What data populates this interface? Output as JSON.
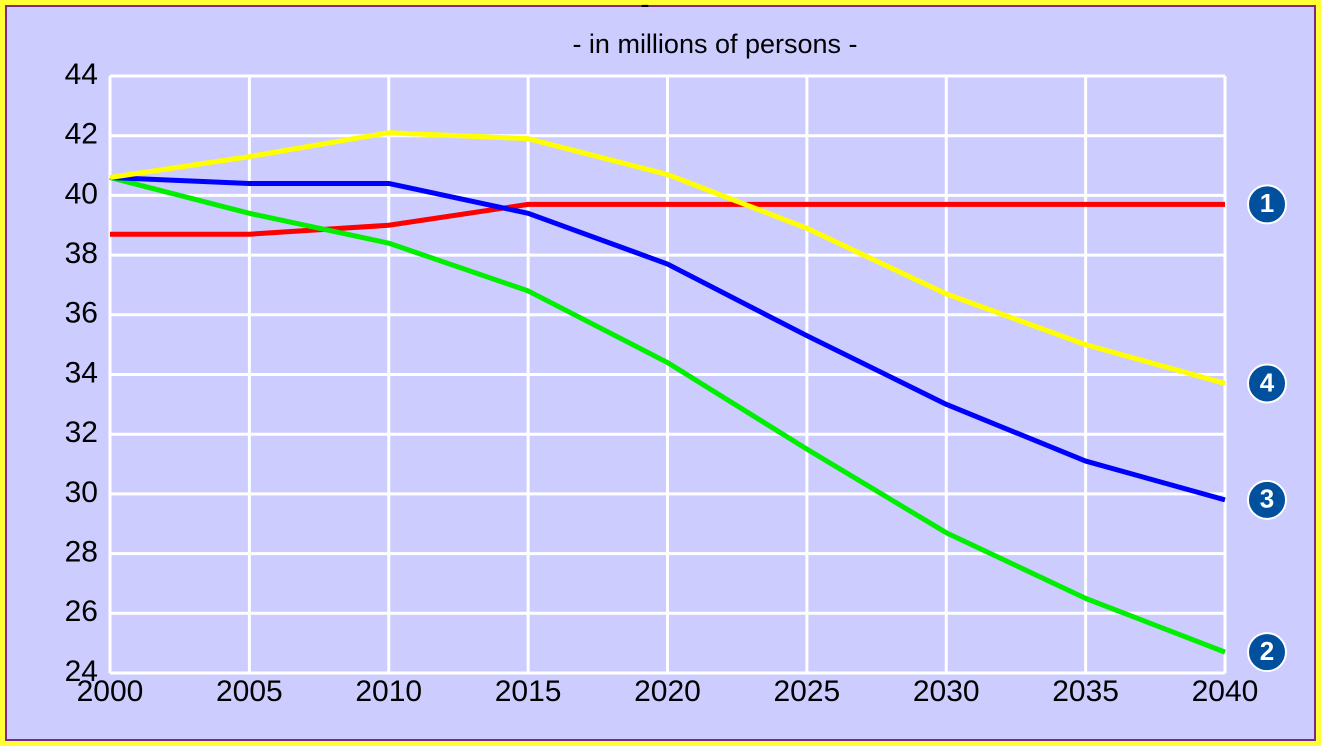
{
  "chart_data": {
    "type": "line",
    "title": "-",
    "subtitle": "- in millions of persons -",
    "x": [
      2000,
      2005,
      2010,
      2015,
      2020,
      2025,
      2030,
      2035,
      2040
    ],
    "series": [
      {
        "name": "1",
        "color": "#ff0000",
        "values": [
          38.7,
          38.7,
          39.0,
          39.7,
          39.7,
          39.7,
          39.7,
          39.7,
          39.7
        ]
      },
      {
        "name": "2",
        "color": "#00ee00",
        "values": [
          40.6,
          39.4,
          38.4,
          36.8,
          34.4,
          31.5,
          28.7,
          26.5,
          24.7
        ]
      },
      {
        "name": "3",
        "color": "#0000ff",
        "values": [
          40.6,
          40.4,
          40.4,
          39.4,
          37.7,
          35.3,
          33.0,
          31.1,
          29.8
        ]
      },
      {
        "name": "4",
        "color": "#ffff00",
        "values": [
          40.6,
          41.3,
          42.1,
          41.9,
          40.7,
          38.9,
          36.7,
          35.0,
          33.7
        ]
      }
    ],
    "xlim": [
      2000,
      2040
    ],
    "xticks": [
      2000,
      2005,
      2010,
      2015,
      2020,
      2025,
      2030,
      2035,
      2040
    ],
    "ylim": [
      24,
      44
    ],
    "yticks": [
      24,
      26,
      28,
      30,
      32,
      34,
      36,
      38,
      40,
      42,
      44
    ],
    "grid": true
  }
}
